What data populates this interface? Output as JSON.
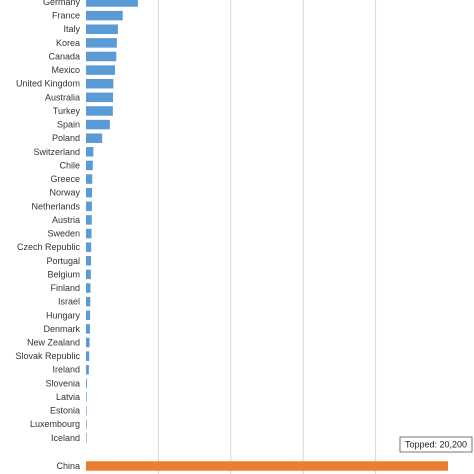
{
  "chart_data": {
    "type": "bar",
    "orientation": "horizontal",
    "categories": [
      "Germany",
      "France",
      "Italy",
      "Korea",
      "Canada",
      "Mexico",
      "United Kingdom",
      "Australia",
      "Turkey",
      "Spain",
      "Poland",
      "Switzerland",
      "Chile",
      "Greece",
      "Norway",
      "Netherlands",
      "Austria",
      "Sweden",
      "Czech Republic",
      "Portugal",
      "Belgium",
      "Finland",
      "Israel",
      "Hungary",
      "Denmark",
      "New Zealand",
      "Slovak Republic",
      "Ireland",
      "Slovenia",
      "Latvia",
      "Estonia",
      "Luxembourg",
      "Iceland",
      "China"
    ],
    "values": [
      2900,
      2050,
      1780,
      1720,
      1690,
      1620,
      1530,
      1510,
      1500,
      1330,
      900,
      410,
      380,
      350,
      340,
      330,
      320,
      310,
      290,
      280,
      270,
      250,
      240,
      230,
      220,
      200,
      180,
      160,
      50,
      40,
      10,
      5,
      3,
      20200
    ],
    "xlim": [
      0,
      20200
    ],
    "grid": true,
    "colors": {
      "default": "#5b9bd5",
      "highlight": "#ed7d31"
    },
    "highlight_category": "China",
    "annotation": "Topped: 20,200"
  }
}
